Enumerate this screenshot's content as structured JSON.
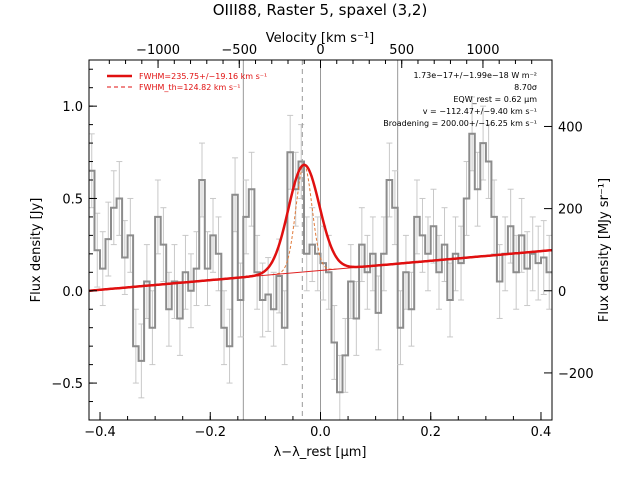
{
  "chart_data": {
    "type": "line",
    "title": "OIII88, Raster 5, spaxel (3,2)",
    "top_axis_label": "Velocity [km s⁻¹]",
    "top_ticks": [
      "−1000",
      "−500",
      "0",
      "500",
      "1000"
    ],
    "top_tick_values": [
      -1000,
      -500,
      0,
      500,
      1000
    ],
    "xlabel": "λ−λ_rest [μm]",
    "xlim": [
      -0.42,
      0.42
    ],
    "x_ticks": [
      "−0.4",
      "−0.2",
      "0.0",
      "0.2",
      "0.4"
    ],
    "x_tick_values": [
      -0.4,
      -0.2,
      0.0,
      0.2,
      0.4
    ],
    "ylabel": "Flux density [Jy]",
    "ylim": [
      -0.7,
      1.25
    ],
    "y_ticks": [
      "−0.5",
      "0.0",
      "0.5",
      "1.0"
    ],
    "y_tick_values": [
      -0.5,
      0.0,
      0.5,
      1.0
    ],
    "right_axis_label": "Flux density [MJy sr⁻¹]",
    "right_ticks": [
      "−200",
      "0",
      "200",
      "400"
    ],
    "right_tick_yvalues": [
      -0.445,
      0.0,
      0.445,
      0.89
    ],
    "legend_placement": "top-left",
    "legend": [
      {
        "label": "FWHM=235.75+/−19.16 km s⁻¹",
        "style": "solid"
      },
      {
        "label": "FWHM_th=124.82 km s⁻¹",
        "style": "dashed"
      }
    ],
    "annotations": [
      "1.73e−17+/−1.99e−18 W m⁻²",
      "8.70σ",
      "EQW_rest = 0.62 μm",
      "v = −112.47+/−9.40 km s⁻¹",
      "Broadening = 200.00+/−16.25 km s⁻¹"
    ],
    "vertical_lines_x": [
      -0.14,
      0.0,
      0.14
    ],
    "center_dashed_x": -0.033,
    "continuum": {
      "x": [
        -0.42,
        0.42
      ],
      "y": [
        0.0,
        0.22
      ]
    },
    "gaussian_fit": {
      "center": -0.03,
      "sigma": 0.028,
      "amplitude": 0.58
    },
    "thermal_profile": {
      "center": -0.03,
      "sigma": 0.0145,
      "amplitude": 0.58
    },
    "series": [
      {
        "style": "step-with-errorbars",
        "x": [
          -0.415,
          -0.405,
          -0.395,
          -0.385,
          -0.375,
          -0.365,
          -0.355,
          -0.345,
          -0.335,
          -0.325,
          -0.315,
          -0.305,
          -0.295,
          -0.285,
          -0.275,
          -0.265,
          -0.255,
          -0.245,
          -0.235,
          -0.225,
          -0.215,
          -0.205,
          -0.195,
          -0.185,
          -0.175,
          -0.165,
          -0.155,
          -0.145,
          -0.135,
          -0.125,
          -0.115,
          -0.105,
          -0.095,
          -0.085,
          -0.075,
          -0.065,
          -0.055,
          -0.045,
          -0.035,
          -0.025,
          -0.015,
          -0.005,
          0.005,
          0.015,
          0.025,
          0.035,
          0.045,
          0.055,
          0.065,
          0.075,
          0.085,
          0.095,
          0.105,
          0.115,
          0.125,
          0.135,
          0.145,
          0.155,
          0.165,
          0.175,
          0.185,
          0.195,
          0.205,
          0.215,
          0.225,
          0.235,
          0.245,
          0.255,
          0.265,
          0.275,
          0.285,
          0.295,
          0.305,
          0.315,
          0.325,
          0.335,
          0.345,
          0.355,
          0.365,
          0.375,
          0.385,
          0.395,
          0.405,
          0.415
        ],
        "y": [
          0.65,
          0.22,
          0.12,
          0.28,
          0.45,
          0.5,
          0.18,
          0.3,
          -0.3,
          -0.38,
          0.05,
          -0.2,
          0.4,
          0.25,
          -0.1,
          0.05,
          -0.15,
          0.1,
          0.0,
          0.12,
          0.6,
          0.12,
          0.3,
          0.2,
          -0.2,
          -0.3,
          0.52,
          -0.05,
          0.4,
          0.55,
          0.1,
          -0.05,
          -0.02,
          -0.1,
          0.08,
          -0.2,
          0.75,
          0.55,
          0.7,
          0.2,
          0.25,
          0.2,
          0.15,
          0.1,
          -0.28,
          -0.55,
          -0.35,
          0.05,
          -0.15,
          0.25,
          0.1,
          0.2,
          -0.12,
          0.2,
          0.6,
          0.45,
          -0.2,
          0.1,
          -0.1,
          0.4,
          0.3,
          0.2,
          0.35,
          0.1,
          0.25,
          -0.05,
          0.2,
          0.15,
          0.5,
          0.85,
          0.55,
          0.8,
          0.7,
          0.4,
          0.05,
          0.2,
          0.35,
          0.1,
          0.3,
          0.12,
          0.2,
          0.15,
          0.18,
          0.1
        ],
        "yerr": 0.2
      }
    ]
  }
}
